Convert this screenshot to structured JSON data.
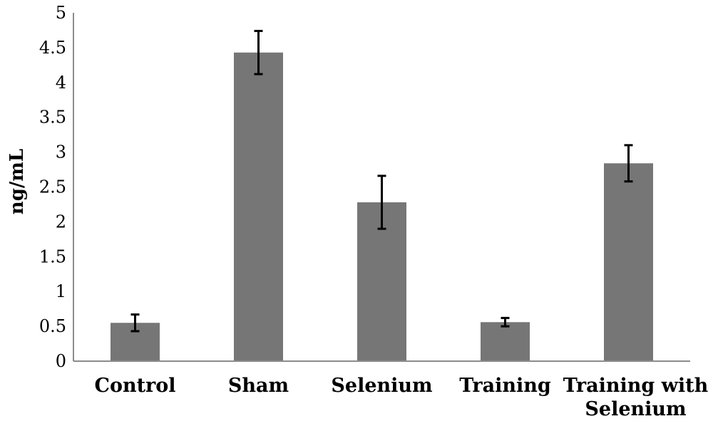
{
  "chart_data": {
    "type": "bar",
    "categories": [
      [
        "Control"
      ],
      [
        "Sham"
      ],
      [
        "Selenium"
      ],
      [
        "Training"
      ],
      [
        "Training with",
        "Selenium"
      ]
    ],
    "values": [
      0.55,
      4.43,
      2.28,
      0.56,
      2.84
    ],
    "errors": [
      0.12,
      0.31,
      0.38,
      0.06,
      0.26
    ],
    "ylabel": "ng/mL",
    "ylim": [
      0,
      5
    ],
    "yticks": [
      "0",
      "0.5",
      "1",
      "1.5",
      "2",
      "2.5",
      "3",
      "3.5",
      "4",
      "4.5",
      "5"
    ],
    "grid": false,
    "bar_color": "#767676",
    "error_color": "#000000",
    "axis_color": "#8c8c8c"
  }
}
